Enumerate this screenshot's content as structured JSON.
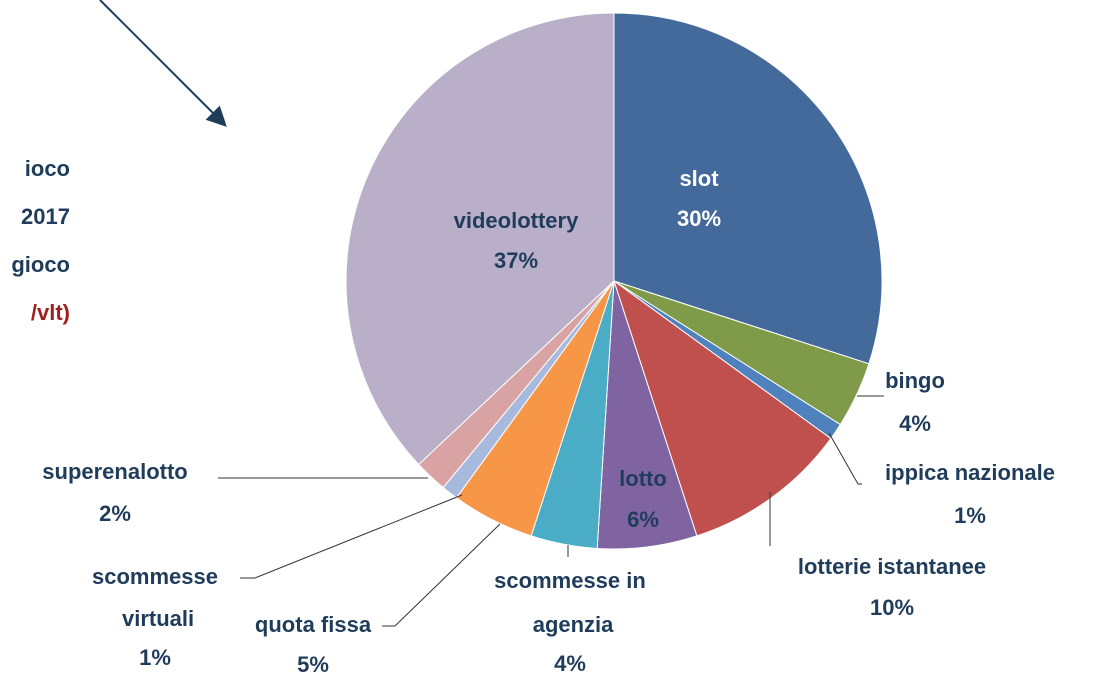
{
  "annotations": [
    "ioco",
    "2017",
    "gioco",
    "/vlt)"
  ],
  "chart_data": {
    "type": "pie",
    "categories": [
      "slot",
      "bingo",
      "ippica nazionale",
      "lotterie istantanee",
      "lotto",
      "scommesse in agenzia",
      "quota fissa",
      "scommesse virtuali",
      "superenalotto",
      "videolottery"
    ],
    "values": [
      30,
      4,
      1,
      10,
      6,
      4,
      5,
      1,
      2,
      37
    ],
    "value_labels": [
      "30%",
      "4%",
      "1%",
      "10%",
      "6%",
      "4%",
      "5%",
      "1%",
      "2%",
      "37%"
    ],
    "colors": [
      "#44699b",
      "#7f9a48",
      "#4f81bd",
      "#c0504d",
      "#8064a2",
      "#4bacc6",
      "#f79646",
      "#a7b9dd",
      "#d9a3a3",
      "#b9afc9"
    ]
  }
}
